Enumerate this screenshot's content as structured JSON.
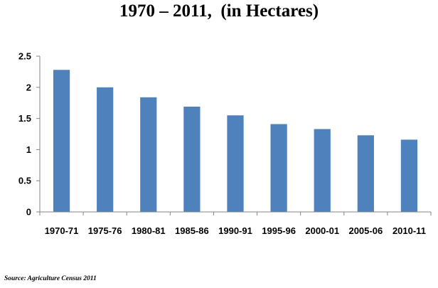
{
  "chart_data": {
    "type": "bar",
    "title": "1970 – 2011,  (in Hectares)",
    "xlabel": "",
    "ylabel": "",
    "categories": [
      "1970-71",
      "1975-76",
      "1980-81",
      "1985-86",
      "1990-91",
      "1995-96",
      "2000-01",
      "2005-06",
      "2010-11"
    ],
    "values": [
      2.28,
      2.0,
      1.84,
      1.69,
      1.55,
      1.41,
      1.33,
      1.23,
      1.16
    ],
    "ylim": [
      0,
      2.5
    ],
    "yticks": [
      "0",
      "0.5",
      "1",
      "1.5",
      "2",
      "2.5"
    ],
    "grid": false,
    "legend": "none",
    "bar_color": "#4F81BD",
    "source": "Source: Agriculture Census 2011"
  }
}
